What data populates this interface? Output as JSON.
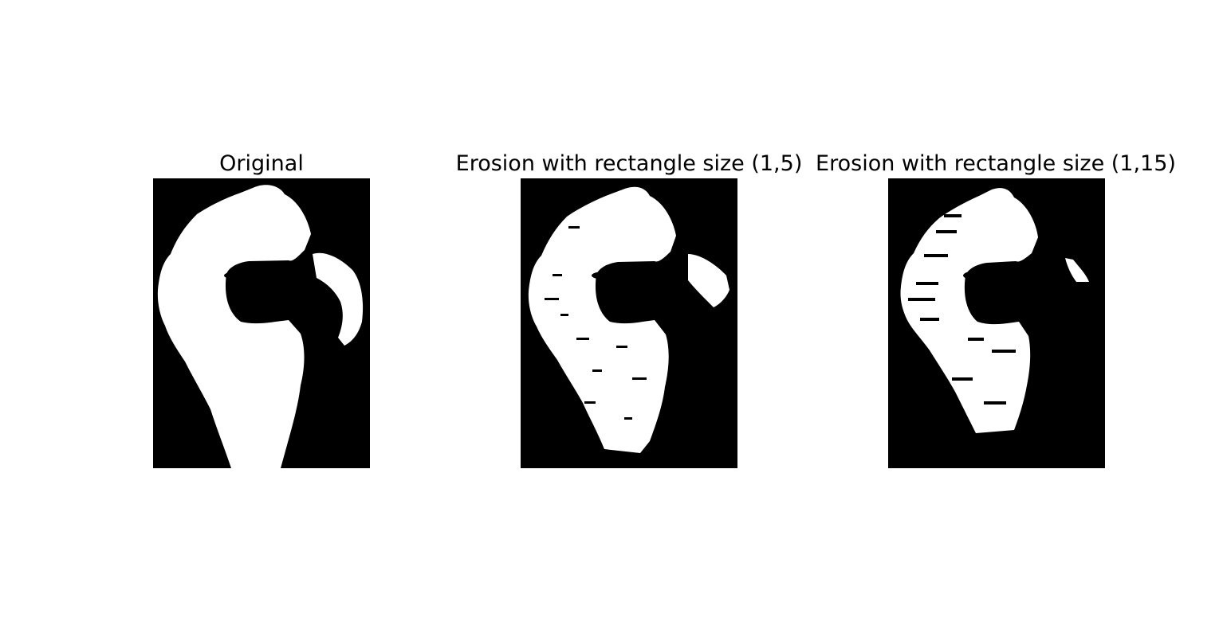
{
  "figure": {
    "background": "#ffffff",
    "panels": [
      {
        "title": "Original"
      },
      {
        "title": "Erosion with rectangle size (1,5)"
      },
      {
        "title": "Erosion with rectangle size (1,15)"
      }
    ],
    "image_colors": {
      "foreground": "#ffffff",
      "background": "#000000"
    }
  }
}
